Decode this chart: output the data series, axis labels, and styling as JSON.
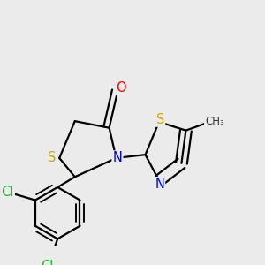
{
  "bg_color": "#ebebeb",
  "bond_color": "#000000",
  "bond_width": 1.6,
  "atom_colors": {
    "S": "#ccaa00",
    "N": "#0000ee",
    "O": "#ff0000",
    "Cl": "#22bb22",
    "C": "#000000"
  },
  "font_size_atom": 10.5
}
